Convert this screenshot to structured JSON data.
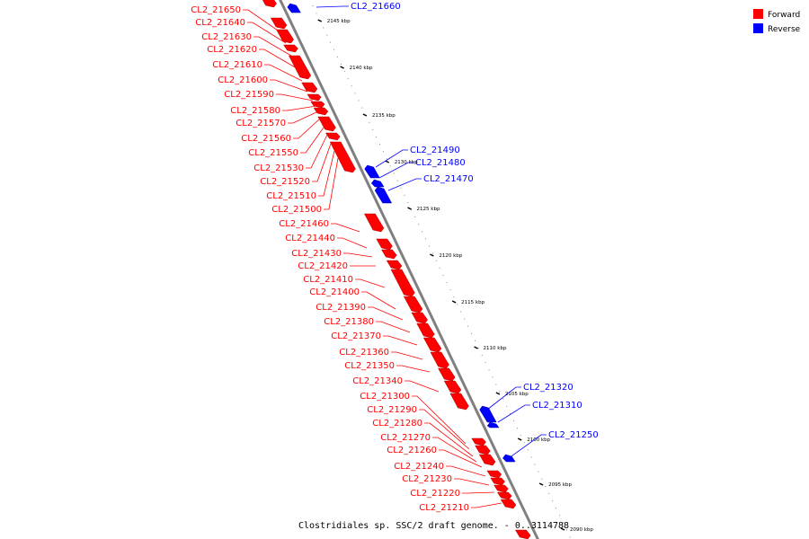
{
  "colors": {
    "forward": "#ff0000",
    "reverse": "#0000ff",
    "backbone": "#808080"
  },
  "legend": {
    "forward": "Forward",
    "reverse": "Reverse"
  },
  "caption": "Clostridiales sp. SSC/2 draft genome. - 0..3114788",
  "ticks": [
    "2145 kbp",
    "2140 kbp",
    "2135 kbp",
    "2130 kbp",
    "2125 kbp",
    "2120 kbp",
    "2115 kbp",
    "2110 kbp",
    "2105 kbp",
    "2100 kbp",
    "2095 kbp",
    "2090 kbp"
  ],
  "forward_genes": [
    "CL2_21650",
    "CL2_21640",
    "CL2_21630",
    "CL2_21620",
    "CL2_21610",
    "CL2_21600",
    "CL2_21590",
    "CL2_21580",
    "CL2_21570",
    "CL2_21560",
    "CL2_21550",
    "CL2_21530",
    "CL2_21520",
    "CL2_21510",
    "CL2_21500",
    "CL2_21460",
    "CL2_21440",
    "CL2_21430",
    "CL2_21420",
    "CL2_21410",
    "CL2_21400",
    "CL2_21390",
    "CL2_21380",
    "CL2_21370",
    "CL2_21360",
    "CL2_21350",
    "CL2_21340",
    "CL2_21300",
    "CL2_21290",
    "CL2_21280",
    "CL2_21270",
    "CL2_21260",
    "CL2_21240",
    "CL2_21230",
    "CL2_21220",
    "CL2_21210"
  ],
  "reverse_genes": [
    "CL2_21660",
    "CL2_21490",
    "CL2_21480",
    "CL2_21470",
    "CL2_21320",
    "CL2_21310",
    "CL2_21250"
  ]
}
